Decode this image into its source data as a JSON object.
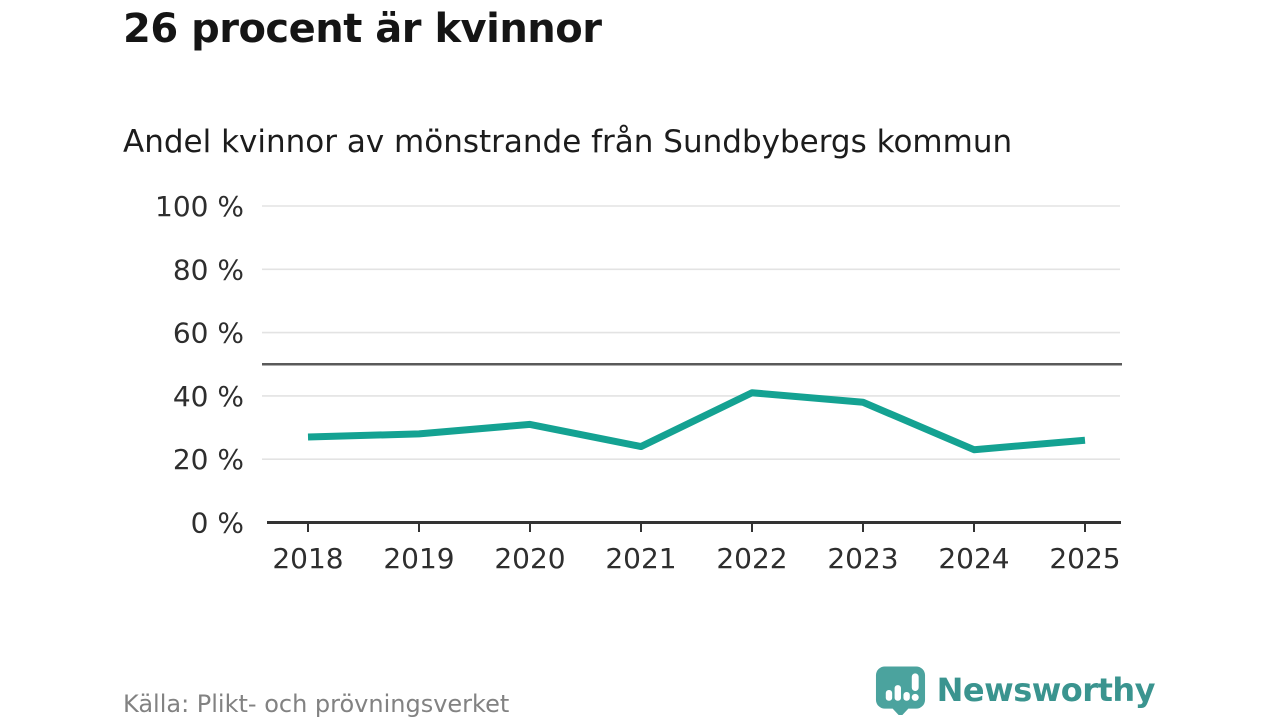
{
  "header": {
    "title": "26 procent är kvinnor",
    "subtitle": "Andel kvinnor av mönstrande från Sundbybergs kommun"
  },
  "chart_data": {
    "type": "line",
    "title": "Andel kvinnor av mönstrande från Sundbybergs kommun",
    "x": [
      "2018",
      "2019",
      "2020",
      "2021",
      "2022",
      "2023",
      "2024",
      "2025"
    ],
    "series": [
      {
        "name": "Andel kvinnor",
        "values": [
          27,
          28,
          31,
          24,
          41,
          38,
          23,
          26
        ]
      }
    ],
    "unit": "%",
    "ylim": [
      0,
      100
    ],
    "yticks": [
      0,
      20,
      40,
      60,
      80,
      100
    ],
    "ytick_suffix": " %",
    "reference_line": 50,
    "grid": true,
    "legend_position": "none",
    "colors": {
      "line": "#14a292",
      "grid": "#e3e3e3",
      "axis": "#333333",
      "reference": "#5a5a5a",
      "tick_label": "#2e2e2e"
    }
  },
  "footer": {
    "source": "Källa: Plikt- och prövningsverket",
    "brand": "Newsworthy",
    "brand_color": "#3a948f",
    "logo_color": "#4ba39e"
  }
}
